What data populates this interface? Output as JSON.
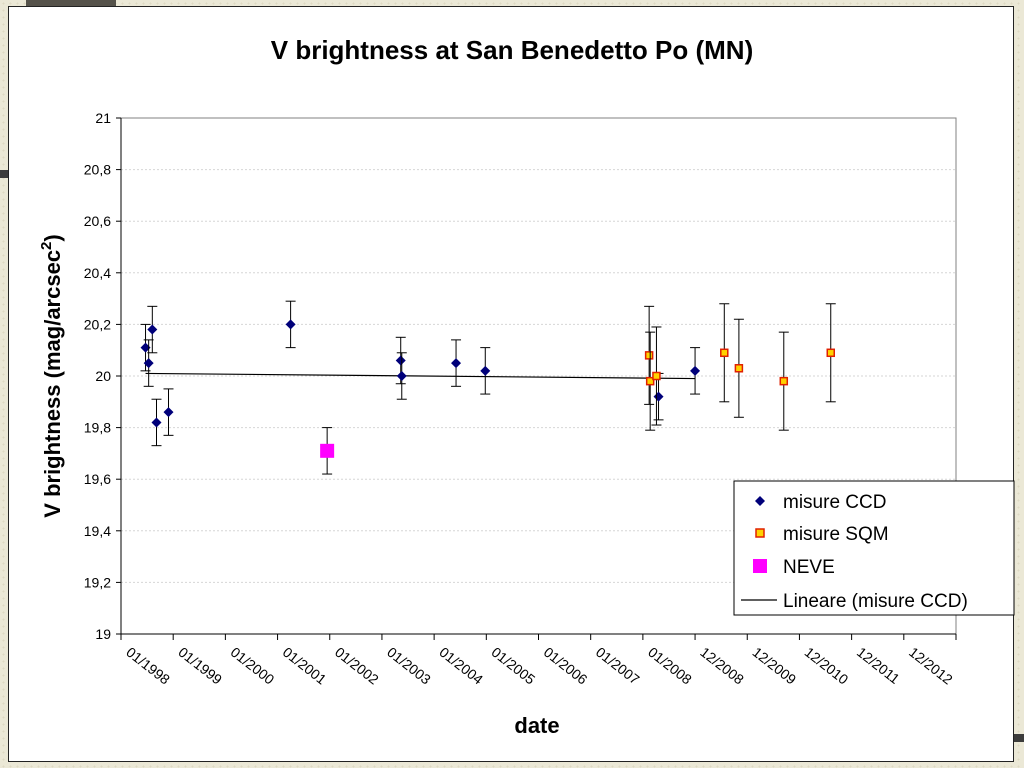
{
  "chart_data": {
    "type": "scatter",
    "title": "V brightness at San Benedetto Po (MN)",
    "xlabel": "date",
    "ylabel": "V brightness (mag/arcsec",
    "ylabel_sup": "2",
    "ylabel_close": ")",
    "ylim": [
      19,
      21
    ],
    "y_ticks": [
      "19",
      "19,2",
      "19,4",
      "19,6",
      "19,8",
      "20",
      "20,2",
      "20,4",
      "20,6",
      "20,8",
      "21"
    ],
    "x_tick_labels": [
      "01/1998",
      "01/1999",
      "01/2000",
      "01/2001",
      "01/2002",
      "01/2003",
      "01/2004",
      "01/2005",
      "01/2006",
      "01/2007",
      "01/2008",
      "12/2008",
      "12/2009",
      "12/2010",
      "12/2011",
      "12/2012"
    ],
    "grid": "horizontal",
    "legend_position": "bottom-right",
    "series": [
      {
        "name": "misure CCD",
        "marker": "diamond",
        "color": "#00007a",
        "points": [
          {
            "x": 0.47,
            "y": 20.11,
            "err": 0.09
          },
          {
            "x": 0.53,
            "y": 20.05,
            "err": 0.09
          },
          {
            "x": 0.6,
            "y": 20.18,
            "err": 0.09
          },
          {
            "x": 0.68,
            "y": 19.82,
            "err": 0.09
          },
          {
            "x": 0.91,
            "y": 19.86,
            "err": 0.09
          },
          {
            "x": 3.25,
            "y": 20.2,
            "err": 0.09
          },
          {
            "x": 5.36,
            "y": 20.06,
            "err": 0.09
          },
          {
            "x": 5.38,
            "y": 20.0,
            "err": 0.09
          },
          {
            "x": 6.42,
            "y": 20.05,
            "err": 0.09
          },
          {
            "x": 6.98,
            "y": 20.02,
            "err": 0.09
          },
          {
            "x": 10.3,
            "y": 19.92,
            "err": 0.09
          },
          {
            "x": 11.0,
            "y": 20.02,
            "err": 0.09
          }
        ]
      },
      {
        "name": "misure SQM",
        "marker": "square-small",
        "color": "#ffd200",
        "stroke": "#e02000",
        "points": [
          {
            "x": 10.12,
            "y": 20.08,
            "err": 0.19
          },
          {
            "x": 10.14,
            "y": 19.98,
            "err": 0.19
          },
          {
            "x": 10.26,
            "y": 20.0,
            "err": 0.19
          },
          {
            "x": 11.56,
            "y": 20.09,
            "err": 0.19
          },
          {
            "x": 11.84,
            "y": 20.03,
            "err": 0.19
          },
          {
            "x": 12.7,
            "y": 19.98,
            "err": 0.19
          },
          {
            "x": 13.6,
            "y": 20.09,
            "err": 0.19
          }
        ]
      },
      {
        "name": "NEVE",
        "marker": "square-large",
        "color": "#ff00ff",
        "points": [
          {
            "x": 3.95,
            "y": 19.71,
            "err": 0.09
          }
        ]
      },
      {
        "name": "Lineare (misure CCD)",
        "marker": "line",
        "color": "#000000",
        "x": [
          0.47,
          11.0
        ],
        "y": [
          20.01,
          19.99
        ]
      }
    ]
  }
}
